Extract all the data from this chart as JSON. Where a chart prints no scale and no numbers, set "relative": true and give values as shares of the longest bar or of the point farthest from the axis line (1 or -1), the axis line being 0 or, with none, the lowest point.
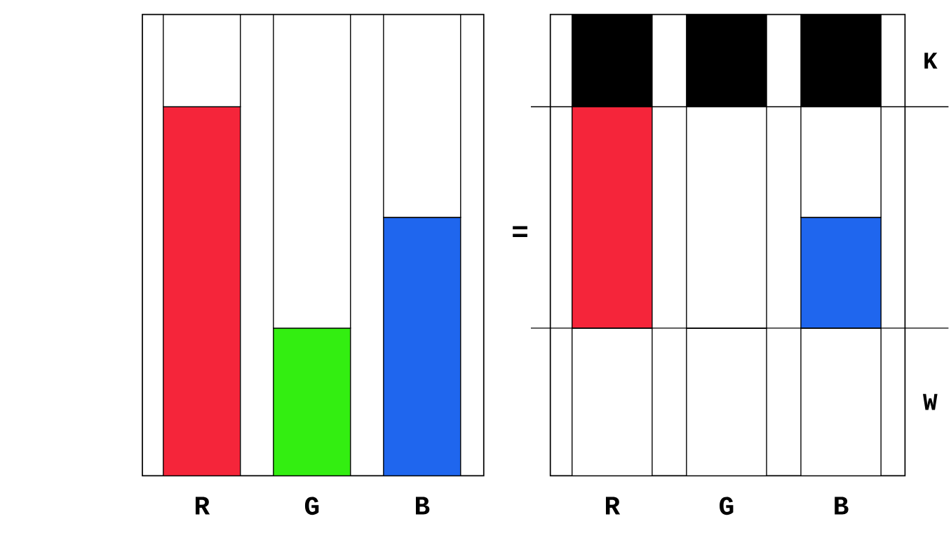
{
  "chart_data": [
    {
      "type": "bar",
      "stacked": true,
      "relative": true,
      "categories": [
        "R",
        "G",
        "B"
      ],
      "series": [
        {
          "colors": [
            "#f5253a",
            "#33ee11",
            "#1f66ee"
          ],
          "values": [
            0.8,
            0.32,
            0.56
          ]
        },
        {
          "color": "#ffffff",
          "values": [
            0.2,
            0.68,
            0.44
          ]
        }
      ],
      "annotations": [
        "="
      ]
    },
    {
      "type": "bar",
      "stacked": true,
      "relative": true,
      "categories": [
        "R",
        "G",
        "B"
      ],
      "series": [
        {
          "name": "W",
          "color": "#ffffff",
          "values": [
            0.32,
            0.32,
            0.32
          ]
        },
        {
          "colors": [
            "#f5253a",
            "#33ee11",
            "#1f66ee"
          ],
          "values": [
            0.48,
            0,
            0.24
          ]
        },
        {
          "color": "#ffffff",
          "values": [
            0,
            0.48,
            0.24
          ]
        },
        {
          "name": "K",
          "color": "#000000",
          "values": [
            0.2,
            0.2,
            0.2
          ]
        }
      ],
      "ref_lines": [
        {
          "axis": "y",
          "value": 0.32
        },
        {
          "axis": "y",
          "value": 0.8
        }
      ]
    }
  ]
}
